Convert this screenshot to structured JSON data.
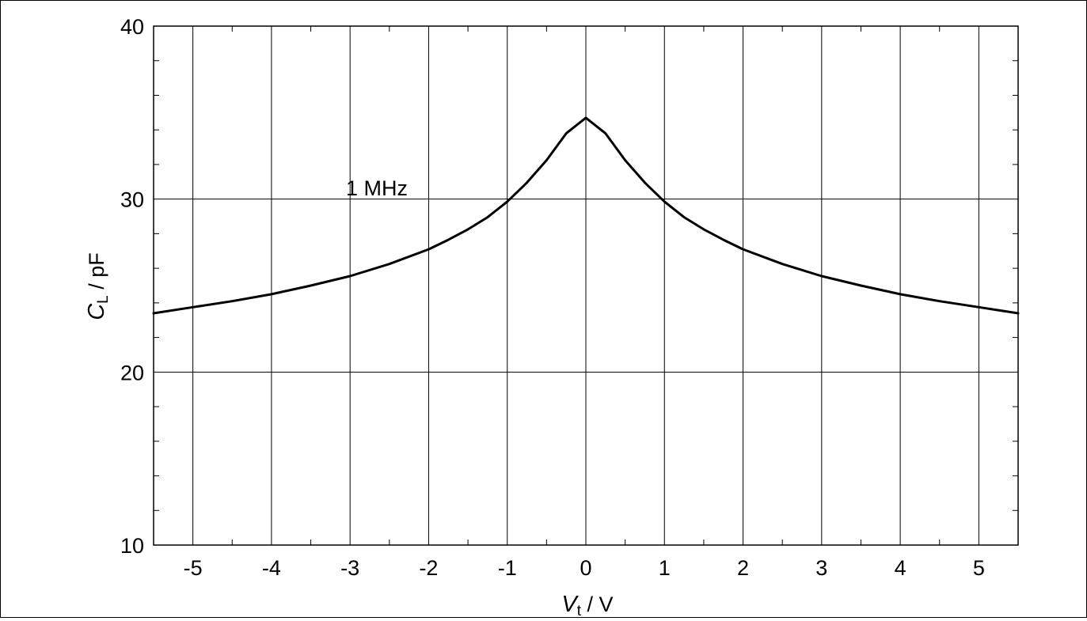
{
  "chart_data": {
    "type": "line",
    "xlabel_main": "V",
    "xlabel_sub": "t",
    "xlabel_unit": " / V",
    "ylabel_main": "C",
    "ylabel_sub": "L",
    "ylabel_unit": " / pF",
    "xlim": [
      -5.5,
      5.5
    ],
    "ylim": [
      10,
      40
    ],
    "xticks": [
      -5,
      -4,
      -3,
      -2,
      -1,
      0,
      1,
      2,
      3,
      4,
      5
    ],
    "xtick_labels": [
      "-5",
      "-4",
      "-3",
      "-2",
      "-1",
      "0",
      "1",
      "2",
      "3",
      "4",
      "5"
    ],
    "yticks": [
      10,
      20,
      30,
      40
    ],
    "ytick_labels": [
      "10",
      "20",
      "30",
      "40"
    ],
    "x_minor_step": 0.5,
    "y_minor_step": 2,
    "grid": true,
    "annotation": "1 MHz",
    "series": [
      {
        "color": "#000000",
        "x": [
          -5.5,
          -5.0,
          -4.5,
          -4.0,
          -3.5,
          -3.0,
          -2.5,
          -2.0,
          -1.75,
          -1.5,
          -1.25,
          -1.0,
          -0.75,
          -0.5,
          -0.25,
          0.0,
          0.25,
          0.5,
          0.75,
          1.0,
          1.25,
          1.5,
          1.75,
          2.0,
          2.5,
          3.0,
          3.5,
          4.0,
          4.5,
          5.0,
          5.5
        ],
        "y": [
          23.4,
          23.75,
          24.1,
          24.5,
          25.0,
          25.55,
          26.25,
          27.1,
          27.65,
          28.25,
          28.95,
          29.85,
          30.95,
          32.25,
          33.8,
          34.7,
          33.8,
          32.25,
          30.95,
          29.85,
          28.95,
          28.25,
          27.65,
          27.1,
          26.25,
          25.55,
          25.0,
          24.5,
          24.1,
          23.75,
          23.4
        ]
      }
    ]
  }
}
